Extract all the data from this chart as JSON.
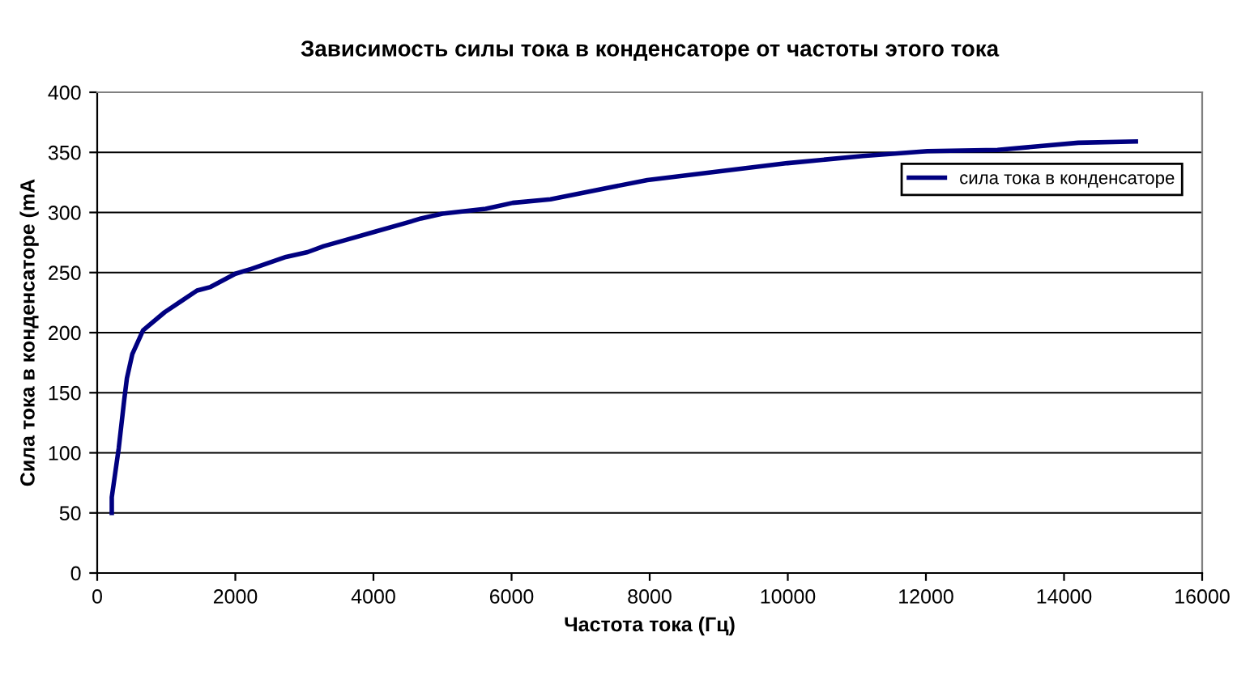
{
  "chart_data": {
    "type": "line",
    "title": "Зависимость силы тока в конденсаторе от частоты этого тока",
    "xlabel": "Частота тока (Гц)",
    "ylabel": "Сила тока в конденсаторе (mA",
    "xlim": [
      0,
      16000
    ],
    "xticks": [
      0,
      2000,
      4000,
      6000,
      8000,
      10000,
      12000,
      14000,
      16000
    ],
    "ylim": [
      0,
      400
    ],
    "yticks": [
      0,
      50,
      100,
      150,
      200,
      250,
      300,
      350,
      400
    ],
    "grid": "y",
    "legend": "top right",
    "marker": "none",
    "line_style": "solid",
    "series": [
      {
        "name": "сила тока в конденсаторе",
        "color": "#000080",
        "x": [
          211,
          211,
          312,
          391,
          430,
          508,
          664,
          977,
          1211,
          1445,
          1641,
          2000,
          2227,
          2734,
          3047,
          3281,
          3594,
          4023,
          4453,
          4688,
          5000,
          5625,
          6016,
          6563,
          7966,
          9994,
          11086,
          12022,
          13036,
          14207,
          15040
        ],
        "values": [
          50,
          63,
          104,
          144,
          162,
          182,
          202,
          217,
          226,
          235,
          238,
          249,
          253,
          263,
          267,
          272,
          277,
          284,
          291,
          295,
          299,
          303,
          308,
          311,
          327,
          341,
          347,
          351,
          352,
          358,
          359
        ]
      }
    ]
  }
}
